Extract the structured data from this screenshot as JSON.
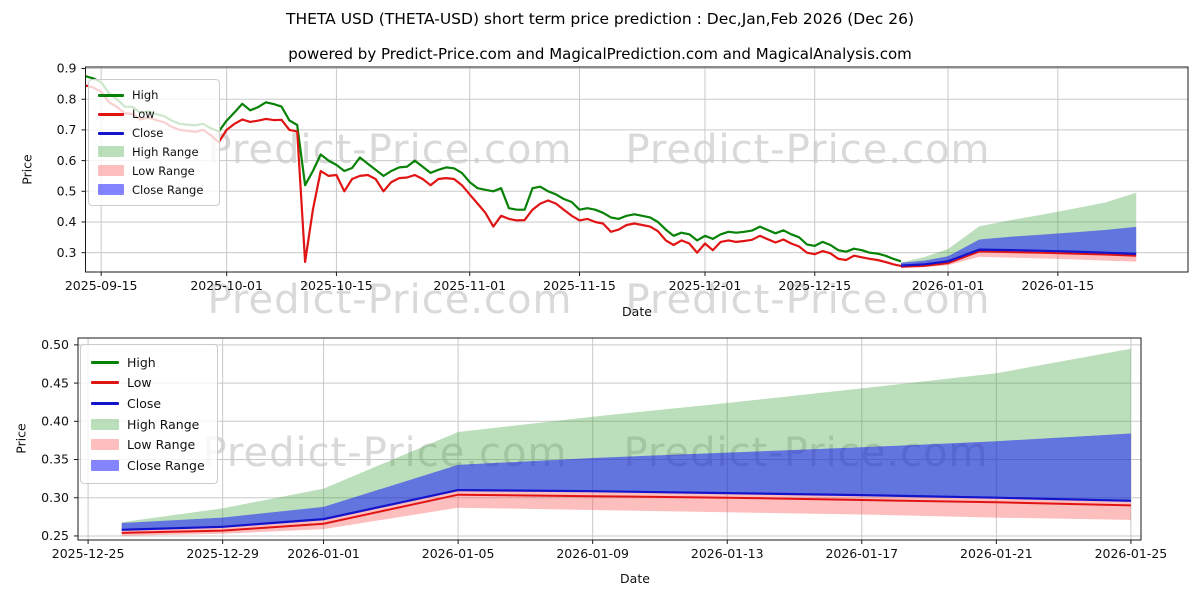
{
  "title": "THETA USD (THETA-USD) short term price prediction : Dec,Jan,Feb 2026 (Dec 26)",
  "subtitle": "powered by Predict-Price.com and MagicalPrediction.com and MagicalAnalysis.com",
  "watermark": {
    "text": "Predict-Price.com"
  },
  "colors": {
    "high": "#078207",
    "low": "#e11414",
    "close": "#1414cc",
    "high_range": "rgba(60,160,60,0.35)",
    "low_range": "rgba(250,70,70,0.35)",
    "close_range": "rgba(10,10,255,0.5)",
    "grid": "#c9c9c9",
    "spine": "#1a1a1a"
  },
  "legend": {
    "items": [
      {
        "label": "High",
        "type": "line",
        "color_key": "high"
      },
      {
        "label": "Low",
        "type": "line",
        "color_key": "low"
      },
      {
        "label": "Close",
        "type": "line",
        "color_key": "close"
      },
      {
        "label": "High Range",
        "type": "patch",
        "color_key": "high_range"
      },
      {
        "label": "Low Range",
        "type": "patch",
        "color_key": "low_range"
      },
      {
        "label": "Close Range",
        "type": "patch",
        "color_key": "close_range"
      }
    ]
  },
  "prediction": {
    "dates": [
      "2025-12-26",
      "2025-12-29",
      "2026-01-01",
      "2026-01-05",
      "2026-01-09",
      "2026-01-13",
      "2026-01-17",
      "2026-01-21",
      "2026-01-25"
    ],
    "close": [
      0.258,
      0.262,
      0.272,
      0.31,
      0.3085,
      0.306,
      0.3035,
      0.3,
      0.296
    ],
    "low": [
      0.254,
      0.257,
      0.266,
      0.304,
      0.302,
      0.3,
      0.297,
      0.294,
      0.29
    ],
    "high_range_top": [
      0.268,
      0.286,
      0.312,
      0.386,
      0.406,
      0.424,
      0.443,
      0.463,
      0.495
    ],
    "close_range_top": [
      0.267,
      0.274,
      0.288,
      0.343,
      0.352,
      0.359,
      0.366,
      0.374,
      0.384
    ],
    "low_range_bottom": [
      0.25,
      0.253,
      0.259,
      0.287,
      0.284,
      0.281,
      0.278,
      0.274,
      0.271
    ]
  },
  "chart_data": [
    {
      "id": "main",
      "type": "line",
      "title": "",
      "xlabel": "Date",
      "ylabel": "Price",
      "x_unit": "days since 2025-09-13",
      "xlim": [
        0,
        140.6
      ],
      "ylim": [
        0.237,
        0.905
      ],
      "grid": true,
      "legend_position": "upper-left",
      "xticks": [
        {
          "x": 2,
          "label": "2025-09-15"
        },
        {
          "x": 18,
          "label": "2025-10-01"
        },
        {
          "x": 32,
          "label": "2025-10-15"
        },
        {
          "x": 49,
          "label": "2025-11-01"
        },
        {
          "x": 63,
          "label": "2025-11-15"
        },
        {
          "x": 79,
          "label": "2025-12-01"
        },
        {
          "x": 93,
          "label": "2025-12-15"
        },
        {
          "x": 110,
          "label": "2026-01-01"
        },
        {
          "x": 124,
          "label": "2026-01-15"
        }
      ],
      "yticks": [
        {
          "v": 0.3,
          "label": "0.3"
        },
        {
          "v": 0.4,
          "label": "0.4"
        },
        {
          "v": 0.5,
          "label": "0.5"
        },
        {
          "v": 0.6,
          "label": "0.6"
        },
        {
          "v": 0.7,
          "label": "0.7"
        },
        {
          "v": 0.8,
          "label": "0.8"
        },
        {
          "v": 0.9,
          "label": "0.9"
        }
      ],
      "history_format": [
        "day",
        "high",
        "low"
      ],
      "history": [
        [
          0,
          0.875,
          0.845
        ],
        [
          1,
          0.868,
          0.838
        ],
        [
          2,
          0.855,
          0.825
        ],
        [
          3,
          0.82,
          0.79
        ],
        [
          4,
          0.8,
          0.775
        ],
        [
          5,
          0.776,
          0.754
        ],
        [
          6,
          0.775,
          0.752
        ],
        [
          7,
          0.756,
          0.734
        ],
        [
          8,
          0.76,
          0.74
        ],
        [
          9,
          0.752,
          0.732
        ],
        [
          10,
          0.745,
          0.725
        ],
        [
          11,
          0.73,
          0.71
        ],
        [
          12,
          0.72,
          0.7
        ],
        [
          13,
          0.717,
          0.697
        ],
        [
          14,
          0.715,
          0.694
        ],
        [
          15,
          0.72,
          0.7
        ],
        [
          16,
          0.705,
          0.682
        ],
        [
          17,
          0.695,
          0.66
        ],
        [
          18,
          0.73,
          0.7
        ],
        [
          19,
          0.757,
          0.72
        ],
        [
          20,
          0.785,
          0.734
        ],
        [
          21,
          0.764,
          0.726
        ],
        [
          22,
          0.774,
          0.73
        ],
        [
          23,
          0.79,
          0.736
        ],
        [
          24,
          0.784,
          0.732
        ],
        [
          25,
          0.776,
          0.733
        ],
        [
          26,
          0.731,
          0.7
        ],
        [
          27,
          0.716,
          0.695
        ],
        [
          28,
          0.52,
          0.27
        ],
        [
          29,
          0.566,
          0.44
        ],
        [
          30,
          0.62,
          0.566
        ],
        [
          31,
          0.6,
          0.55
        ],
        [
          32,
          0.586,
          0.553
        ],
        [
          33,
          0.566,
          0.5
        ],
        [
          34,
          0.576,
          0.54
        ],
        [
          35,
          0.61,
          0.55
        ],
        [
          36,
          0.59,
          0.553
        ],
        [
          37,
          0.57,
          0.54
        ],
        [
          38,
          0.55,
          0.5
        ],
        [
          39,
          0.566,
          0.53
        ],
        [
          40,
          0.578,
          0.543
        ],
        [
          41,
          0.58,
          0.545
        ],
        [
          42,
          0.6,
          0.553
        ],
        [
          43,
          0.58,
          0.54
        ],
        [
          44,
          0.56,
          0.52
        ],
        [
          45,
          0.57,
          0.54
        ],
        [
          46,
          0.578,
          0.543
        ],
        [
          47,
          0.575,
          0.54
        ],
        [
          48,
          0.56,
          0.52
        ],
        [
          49,
          0.53,
          0.49
        ],
        [
          50,
          0.51,
          0.46
        ],
        [
          51,
          0.505,
          0.43
        ],
        [
          52,
          0.5,
          0.385
        ],
        [
          53,
          0.51,
          0.42
        ],
        [
          54,
          0.445,
          0.41
        ],
        [
          55,
          0.44,
          0.405
        ],
        [
          56,
          0.44,
          0.406
        ],
        [
          57,
          0.51,
          0.44
        ],
        [
          58,
          0.515,
          0.46
        ],
        [
          59,
          0.5,
          0.47
        ],
        [
          60,
          0.49,
          0.46
        ],
        [
          61,
          0.475,
          0.44
        ],
        [
          62,
          0.465,
          0.42
        ],
        [
          63,
          0.44,
          0.405
        ],
        [
          64,
          0.445,
          0.41
        ],
        [
          65,
          0.44,
          0.4
        ],
        [
          66,
          0.43,
          0.395
        ],
        [
          67,
          0.415,
          0.368
        ],
        [
          68,
          0.41,
          0.375
        ],
        [
          69,
          0.42,
          0.39
        ],
        [
          70,
          0.425,
          0.395
        ],
        [
          71,
          0.42,
          0.39
        ],
        [
          72,
          0.415,
          0.385
        ],
        [
          73,
          0.4,
          0.37
        ],
        [
          74,
          0.375,
          0.34
        ],
        [
          75,
          0.355,
          0.325
        ],
        [
          76,
          0.365,
          0.34
        ],
        [
          77,
          0.36,
          0.33
        ],
        [
          78,
          0.34,
          0.3
        ],
        [
          79,
          0.355,
          0.33
        ],
        [
          80,
          0.345,
          0.308
        ],
        [
          81,
          0.36,
          0.335
        ],
        [
          82,
          0.368,
          0.34
        ],
        [
          83,
          0.365,
          0.335
        ],
        [
          84,
          0.368,
          0.338
        ],
        [
          85,
          0.372,
          0.342
        ],
        [
          86,
          0.385,
          0.355
        ],
        [
          87,
          0.374,
          0.344
        ],
        [
          88,
          0.363,
          0.333
        ],
        [
          89,
          0.373,
          0.343
        ],
        [
          90,
          0.36,
          0.33
        ],
        [
          91,
          0.35,
          0.32
        ],
        [
          92,
          0.327,
          0.3
        ],
        [
          93,
          0.322,
          0.295
        ],
        [
          94,
          0.335,
          0.305
        ],
        [
          95,
          0.325,
          0.298
        ],
        [
          96,
          0.308,
          0.28
        ],
        [
          97,
          0.303,
          0.276
        ],
        [
          98,
          0.313,
          0.29
        ],
        [
          99,
          0.308,
          0.285
        ],
        [
          100,
          0.3,
          0.28
        ],
        [
          101,
          0.297,
          0.276
        ],
        [
          102,
          0.29,
          0.27
        ],
        [
          103,
          0.28,
          0.262
        ],
        [
          104,
          0.272,
          0.257
        ]
      ],
      "pred_days": [
        104,
        107,
        110,
        114,
        118,
        122,
        126,
        130,
        134
      ]
    },
    {
      "id": "forecast",
      "type": "line",
      "title": "",
      "xlabel": "Date",
      "ylabel": "Price",
      "x_unit": "days since 2025-12-25",
      "xlim": [
        -0.3,
        31.3
      ],
      "ylim": [
        0.2447,
        0.509
      ],
      "grid": true,
      "legend_position": "upper-left",
      "xticks": [
        {
          "x": 0,
          "label": "2025-12-25"
        },
        {
          "x": 4,
          "label": "2025-12-29"
        },
        {
          "x": 7,
          "label": "2026-01-01"
        },
        {
          "x": 11,
          "label": "2026-01-05"
        },
        {
          "x": 15,
          "label": "2026-01-09"
        },
        {
          "x": 19,
          "label": "2026-01-13"
        },
        {
          "x": 23,
          "label": "2026-01-17"
        },
        {
          "x": 27,
          "label": "2026-01-21"
        },
        {
          "x": 31,
          "label": "2026-01-25"
        }
      ],
      "yticks": [
        {
          "v": 0.25,
          "label": "0.25"
        },
        {
          "v": 0.3,
          "label": "0.30"
        },
        {
          "v": 0.35,
          "label": "0.35"
        },
        {
          "v": 0.4,
          "label": "0.40"
        },
        {
          "v": 0.45,
          "label": "0.45"
        },
        {
          "v": 0.5,
          "label": "0.50"
        }
      ],
      "history": [],
      "pred_days": [
        1,
        4,
        7,
        11,
        15,
        19,
        23,
        27,
        31
      ]
    }
  ]
}
